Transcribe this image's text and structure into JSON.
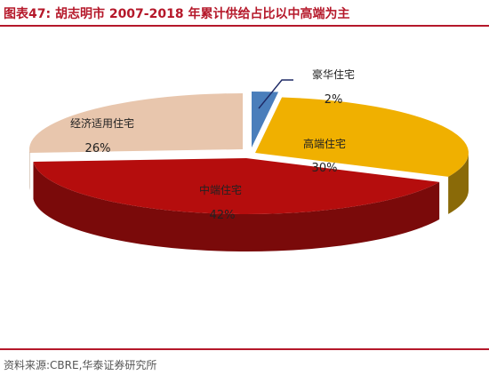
{
  "title": "图表47:  胡志明市 2007-2018 年累计供给占比以中高端为主",
  "source": "资料来源:CBRE,华泰证券研究所",
  "colors": {
    "accent": "#b5182a"
  },
  "chart_data": {
    "type": "pie",
    "title": "",
    "slices": [
      {
        "label": "豪华住宅",
        "value": 2,
        "value_label": "2%",
        "color": "#4a7ebb",
        "side_color": "#2f5a8f"
      },
      {
        "label": "高端住宅",
        "value": 30,
        "value_label": "30%",
        "color": "#f0b000",
        "side_color": "#8a6a08"
      },
      {
        "label": "中端住宅",
        "value": 42,
        "value_label": "42%",
        "color": "#b50d0d",
        "side_color": "#7a0a0a"
      },
      {
        "label": "经济适用住宅",
        "value": 26,
        "value_label": "26%",
        "color": "#e8c6ad",
        "side_color": "#b89a84"
      }
    ]
  }
}
